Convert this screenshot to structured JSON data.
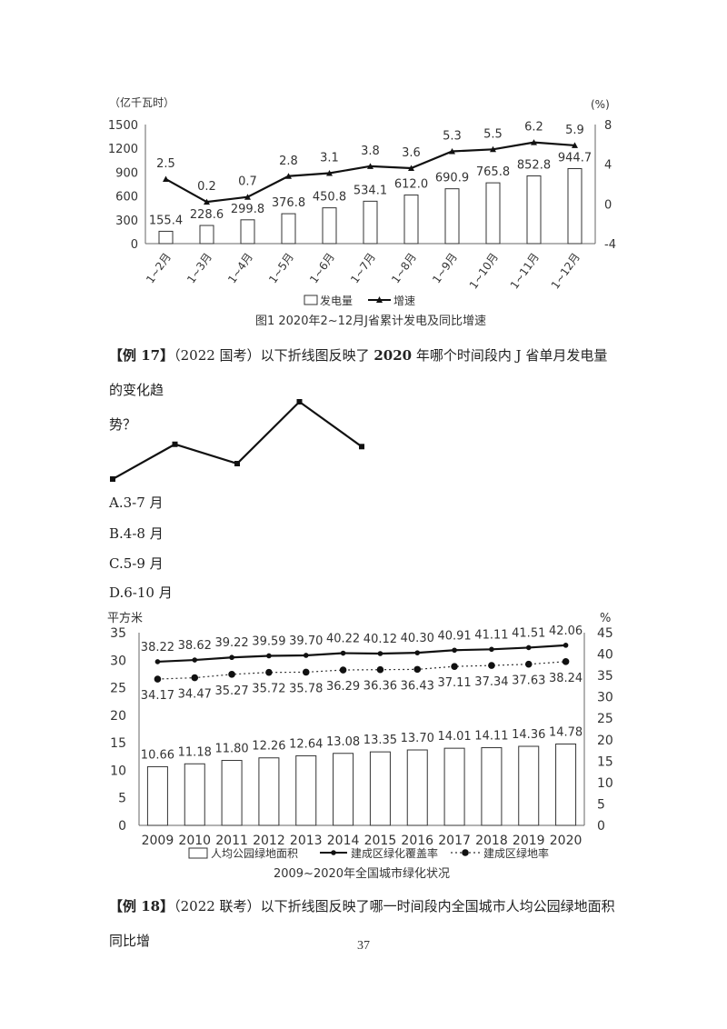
{
  "chart_data": [
    {
      "type": "bar",
      "title": "图1  2020年2~12月J省累计发电及同比增速",
      "y_left_label": "（亿千瓦时）",
      "y_right_label": "(%)",
      "categories": [
        "1~2月",
        "1~3月",
        "1~4月",
        "1~5月",
        "1~6月",
        "1~7月",
        "1~8月",
        "1~9月",
        "1~10月",
        "1~11月",
        "1~12月"
      ],
      "ylim_left": [
        0,
        1500
      ],
      "ylim_right": [
        -4,
        8
      ],
      "left_ticks": [
        "0",
        "300",
        "600",
        "900",
        "1200",
        "1500"
      ],
      "right_ticks": [
        "-4",
        "0",
        "4",
        "8"
      ],
      "series": [
        {
          "name": "发电量",
          "kind": "bar",
          "values": [
            155.4,
            228.6,
            299.8,
            376.8,
            450.8,
            534.1,
            612.0,
            690.9,
            765.8,
            852.8,
            944.7
          ],
          "labels": [
            "155.4",
            "228.6",
            "299.8",
            "376.8",
            "450.8",
            "534.1",
            "612.0",
            "690.9",
            "765.8",
            "852.8",
            "944.7"
          ]
        },
        {
          "name": "增速",
          "kind": "line",
          "axis": "right",
          "values": [
            2.5,
            0.2,
            0.7,
            2.8,
            3.1,
            3.8,
            3.6,
            5.3,
            5.5,
            6.2,
            5.9
          ],
          "labels": [
            "2.5",
            "0.2",
            "0.7",
            "2.8",
            "3.1",
            "3.8",
            "3.6",
            "5.3",
            "5.5",
            "6.2",
            "5.9"
          ]
        }
      ],
      "legend_position": "bottom"
    },
    {
      "type": "line",
      "x": [
        1,
        2,
        3,
        4,
        5
      ],
      "values": [
        0.0,
        0.45,
        0.2,
        1.0,
        0.42
      ],
      "markers": "square"
    },
    {
      "type": "bar",
      "title": "2009~2020年全国城市绿化状况",
      "y_left_label": "平方米",
      "y_right_label": "%",
      "categories": [
        "2009",
        "2010",
        "2011",
        "2012",
        "2013",
        "2014",
        "2015",
        "2016",
        "2017",
        "2018",
        "2019",
        "2020"
      ],
      "ylim_left": [
        0,
        35
      ],
      "ylim_right": [
        0,
        45
      ],
      "left_ticks": [
        "0",
        "5",
        "10",
        "15",
        "20",
        "25",
        "30",
        "35"
      ],
      "right_ticks": [
        "0",
        "5",
        "10",
        "15",
        "20",
        "25",
        "30",
        "35",
        "40",
        "45"
      ],
      "series": [
        {
          "name": "人均公园绿地面积",
          "kind": "bar",
          "values": [
            10.66,
            11.18,
            11.8,
            12.26,
            12.64,
            13.08,
            13.35,
            13.7,
            14.01,
            14.11,
            14.36,
            14.78
          ],
          "labels": [
            "10.66",
            "11.18",
            "11.80",
            "12.26",
            "12.64",
            "13.08",
            "13.35",
            "13.70",
            "14.01",
            "14.11",
            "14.36",
            "14.78"
          ]
        },
        {
          "name": "建成区绿化覆盖率",
          "kind": "line",
          "axis": "right",
          "values": [
            38.22,
            38.62,
            39.22,
            39.59,
            39.7,
            40.22,
            40.12,
            40.3,
            40.91,
            41.11,
            41.51,
            42.06
          ],
          "labels": [
            "38.22",
            "38.62",
            "39.22",
            "39.59",
            "39.70",
            "40.22",
            "40.12",
            "40.30",
            "40.91",
            "41.11",
            "41.51",
            "42.06"
          ]
        },
        {
          "name": "建成区绿地率",
          "kind": "dotted",
          "axis": "right",
          "values": [
            34.17,
            34.47,
            35.27,
            35.72,
            35.78,
            36.29,
            36.36,
            36.43,
            37.11,
            37.34,
            37.63,
            38.24
          ],
          "labels": [
            "34.17",
            "34.47",
            "35.27",
            "35.72",
            "35.78",
            "36.29",
            "36.36",
            "36.43",
            "37.11",
            "37.34",
            "37.63",
            "38.24"
          ]
        }
      ],
      "legend_position": "bottom"
    }
  ],
  "example17": {
    "tag": "【例 17】",
    "source": "（2022 国考）",
    "q_part1": "以下折线图反映了 ",
    "year": "2020",
    "q_part2": " 年哪个时间段内 J 省单月发电量的变化趋",
    "q_line2": "势？",
    "options": [
      "A.3-7 月",
      "B.4-8 月",
      "C.5-9 月",
      "D.6-10 月"
    ]
  },
  "example18": {
    "tag": "【例 18】",
    "source": "（2022 联考）",
    "text": "以下折线图反映了哪一时间段内全国城市人均公园绿地面积同比增"
  },
  "page_number": "37"
}
